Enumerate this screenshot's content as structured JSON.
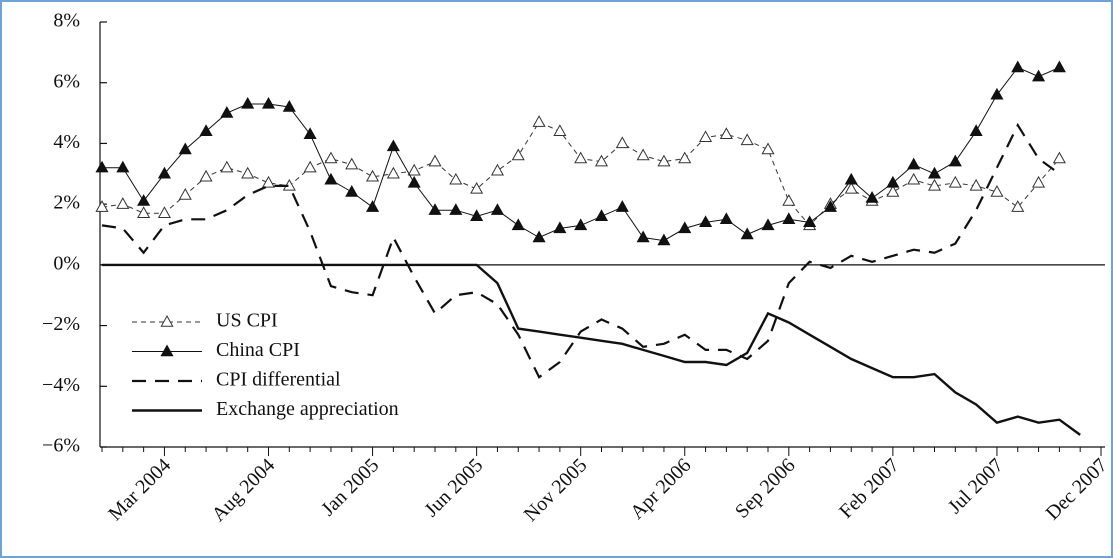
{
  "chart_data": {
    "type": "line",
    "categories": [
      null,
      null,
      null,
      "Mar 2004",
      null,
      null,
      null,
      null,
      "Aug 2004",
      null,
      null,
      null,
      null,
      "Jan 2005",
      null,
      null,
      null,
      null,
      "Jun 2005",
      null,
      null,
      null,
      null,
      "Nov 2005",
      null,
      null,
      null,
      null,
      "Apr 2006",
      null,
      null,
      null,
      null,
      "Sep 2006",
      null,
      null,
      null,
      null,
      "Feb 2007",
      null,
      null,
      null,
      null,
      "Jul 2007",
      null,
      null,
      null,
      null,
      "Dec 2007"
    ],
    "ylim": [
      -6,
      8
    ],
    "yticks": [
      {
        "value": -6,
        "label": "−6%"
      },
      {
        "value": -4,
        "label": "−4%"
      },
      {
        "value": -2,
        "label": "−2%"
      },
      {
        "value": 0,
        "label": "0%"
      },
      {
        "value": 2,
        "label": "2%"
      },
      {
        "value": 4,
        "label": "4%"
      },
      {
        "value": 6,
        "label": "6%"
      },
      {
        "value": 8,
        "label": "8%"
      }
    ],
    "legend": "lower left",
    "series": [
      {
        "name": "US CPI",
        "color": "#333333",
        "line_style": "thin-dashed",
        "marker": "open-triangle",
        "values": [
          1.9,
          2.0,
          1.7,
          1.7,
          2.3,
          2.9,
          3.2,
          3.0,
          2.7,
          2.6,
          3.2,
          3.5,
          3.3,
          2.9,
          3.0,
          3.1,
          3.4,
          2.8,
          2.5,
          3.1,
          3.6,
          4.7,
          4.4,
          3.5,
          3.4,
          4.0,
          3.6,
          3.4,
          3.5,
          4.2,
          4.3,
          4.1,
          3.8,
          2.1,
          1.3,
          2.0,
          2.5,
          2.1,
          2.4,
          2.8,
          2.6,
          2.7,
          2.6,
          2.4,
          1.9,
          2.7,
          3.5,
          null,
          null
        ]
      },
      {
        "name": "China CPI",
        "color": "#111111",
        "line_style": "thin-solid",
        "marker": "filled-triangle",
        "values": [
          3.2,
          3.2,
          2.1,
          3.0,
          3.8,
          4.4,
          5.0,
          5.3,
          5.3,
          5.2,
          4.3,
          2.8,
          2.4,
          1.9,
          3.9,
          2.7,
          1.8,
          1.8,
          1.6,
          1.8,
          1.3,
          0.9,
          1.2,
          1.3,
          1.6,
          1.9,
          0.9,
          0.8,
          1.2,
          1.4,
          1.5,
          1.0,
          1.3,
          1.5,
          1.4,
          1.9,
          2.8,
          2.2,
          2.7,
          3.3,
          3.0,
          3.4,
          4.4,
          5.6,
          6.5,
          6.2,
          6.5,
          null,
          null
        ]
      },
      {
        "name": "CPI differential",
        "color": "#111111",
        "line_style": "thick-dashed",
        "marker": "none",
        "values": [
          1.3,
          1.2,
          0.4,
          1.3,
          1.5,
          1.5,
          1.8,
          2.3,
          2.6,
          2.6,
          1.1,
          -0.7,
          -0.9,
          -1.0,
          0.9,
          -0.4,
          -1.6,
          -1.0,
          -0.9,
          -1.3,
          -2.3,
          -3.7,
          -3.2,
          -2.2,
          -1.8,
          -2.1,
          -2.7,
          -2.6,
          -2.3,
          -2.8,
          -2.8,
          -3.1,
          -2.5,
          -0.6,
          0.1,
          -0.1,
          0.3,
          0.1,
          0.3,
          0.5,
          0.4,
          0.7,
          1.8,
          3.2,
          4.6,
          3.5,
          3.0,
          null,
          null
        ]
      },
      {
        "name": "Exchange appreciation",
        "color": "#111111",
        "line_style": "thick-solid",
        "marker": "none",
        "values": [
          0,
          0,
          0,
          0,
          0,
          0,
          0,
          0,
          0,
          0,
          0,
          0,
          0,
          0,
          0,
          0,
          0,
          0,
          0,
          -0.6,
          -2.1,
          -2.2,
          -2.3,
          -2.4,
          -2.5,
          -2.6,
          -2.8,
          -3.0,
          -3.2,
          -3.2,
          -3.3,
          -2.9,
          -1.6,
          -1.9,
          -2.3,
          -2.7,
          -3.1,
          -3.4,
          -3.7,
          -3.7,
          -3.6,
          -4.2,
          -4.6,
          -5.2,
          -5.0,
          -5.2,
          -5.1,
          -5.6,
          null
        ]
      }
    ]
  }
}
